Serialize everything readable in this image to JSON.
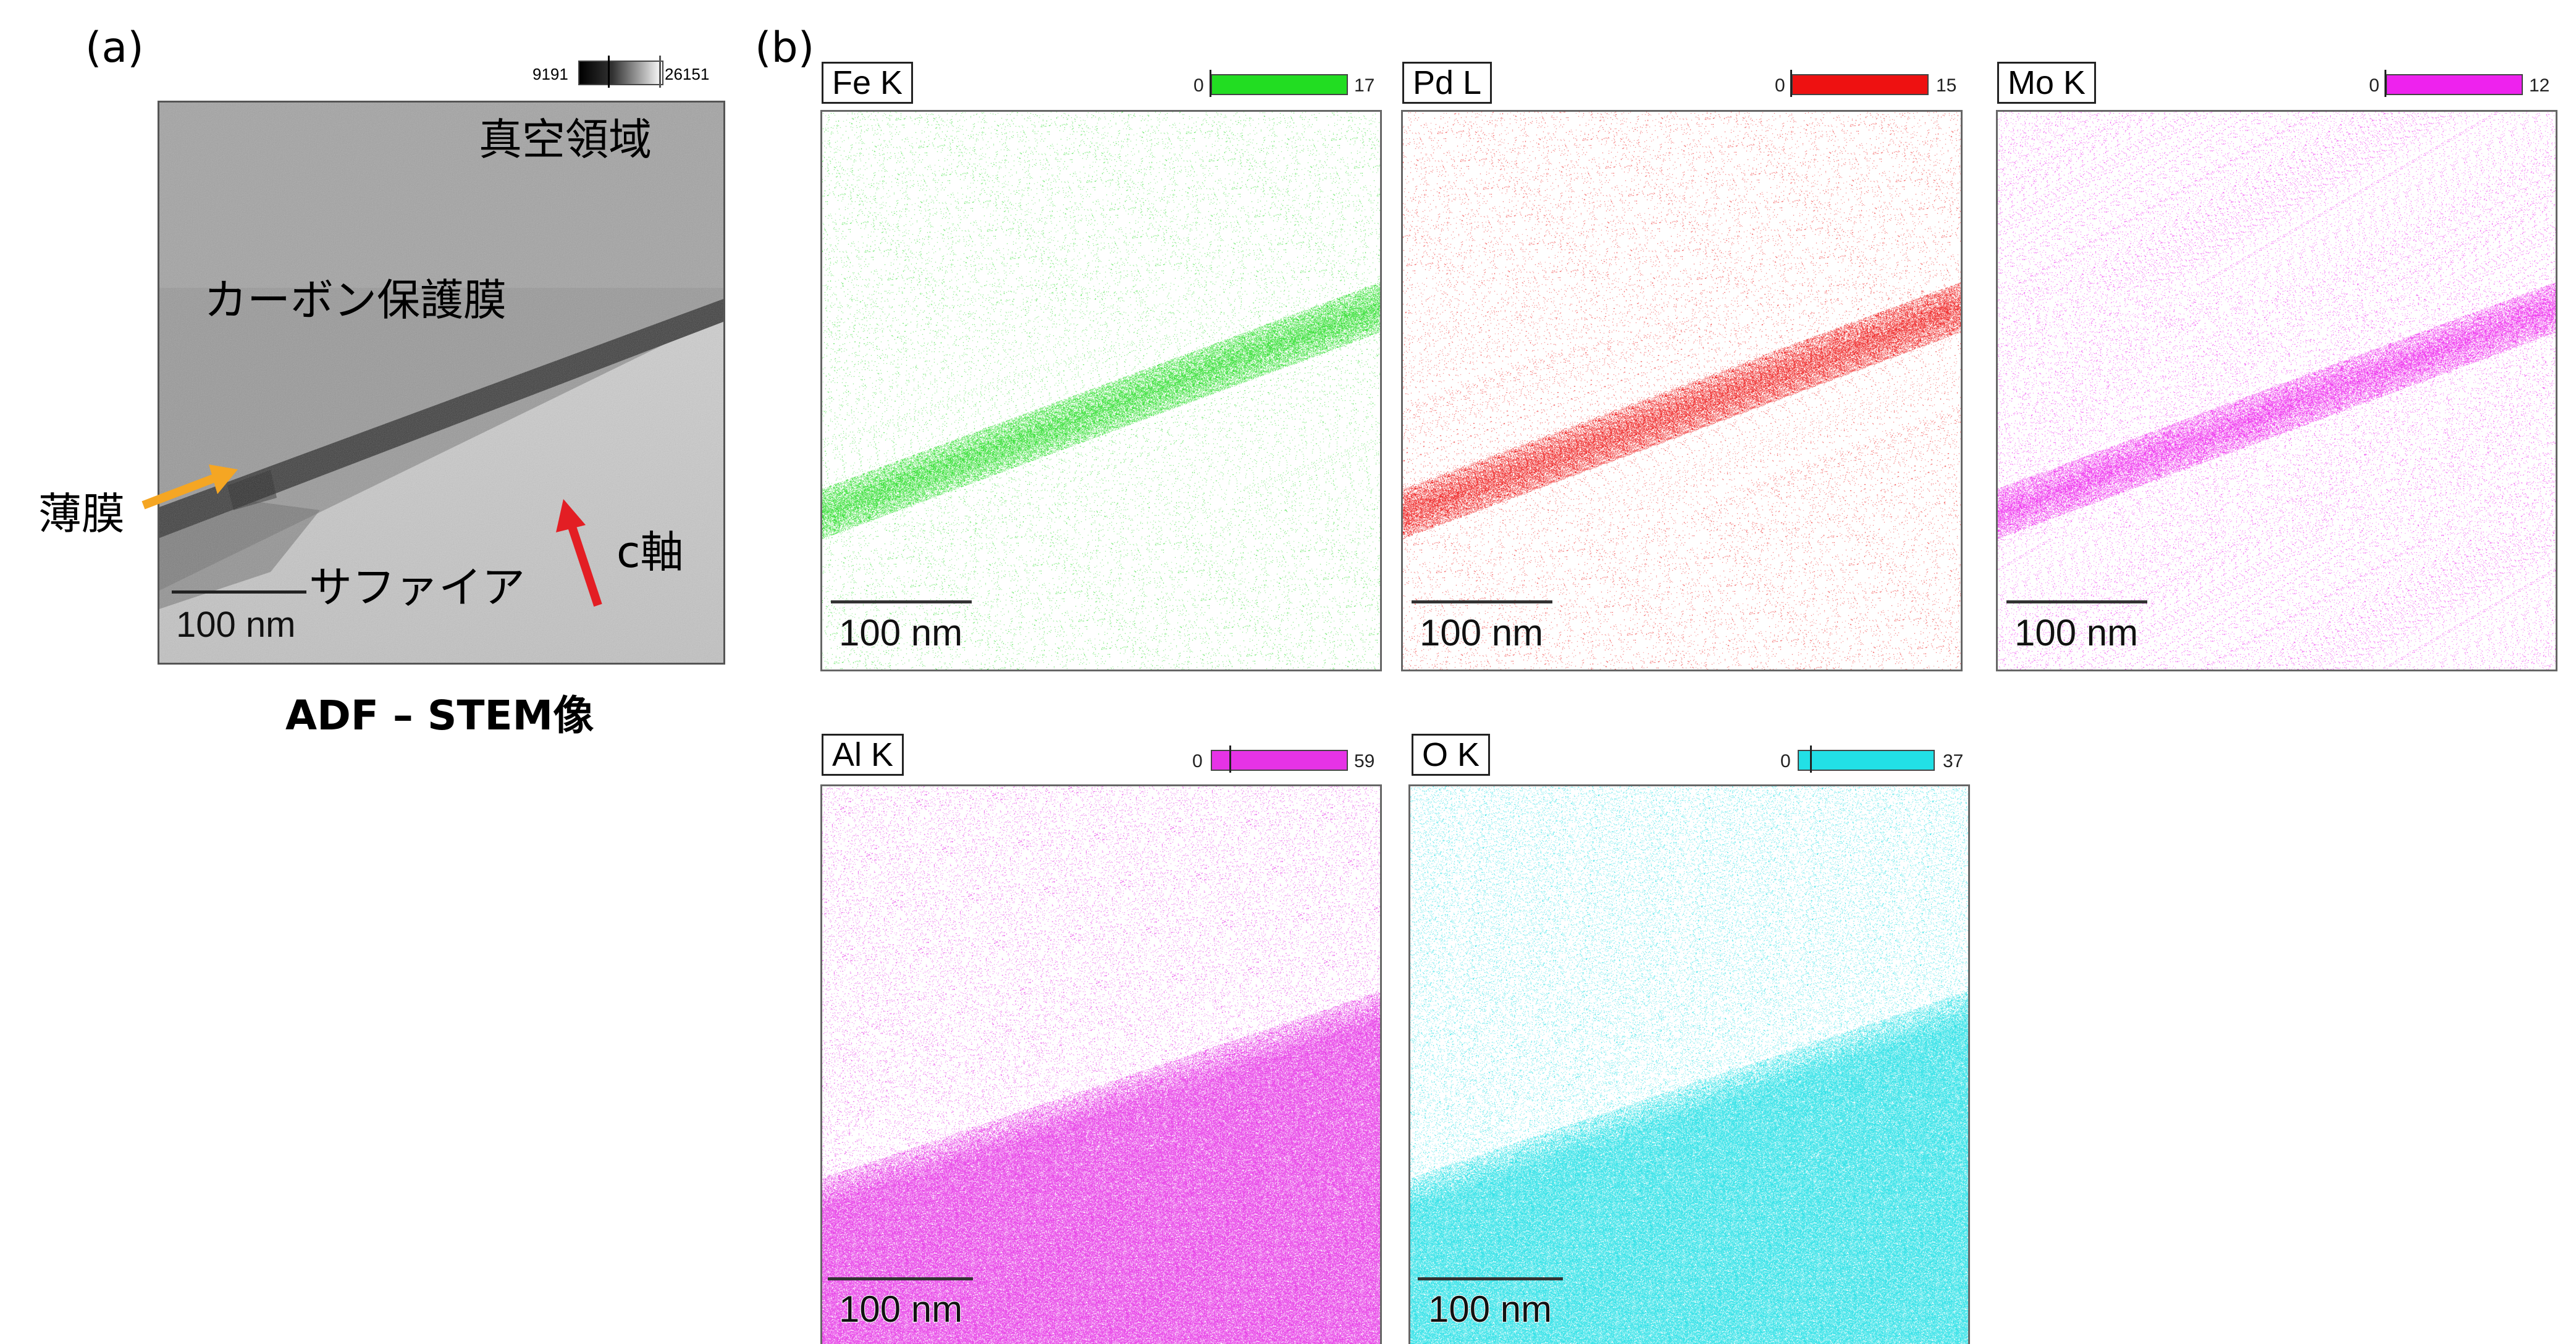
{
  "panel_a": {
    "tag": "(a)",
    "colorbar": {
      "min": "9191",
      "max": "26151"
    },
    "labels": {
      "vacuum": "真空領域",
      "carbon": "カーボン保護膜",
      "film": "薄膜",
      "sapphire": "サファイア",
      "caxis": "c軸"
    },
    "scale": "100 nm",
    "caption": "ADF – STEM像",
    "colors": {
      "film_arrow": "#f5a623",
      "c_axis_arrow": "#e31e24"
    }
  },
  "panel_b": {
    "tag": "(b)",
    "maps": [
      {
        "element": "Fe K",
        "min": "0",
        "max": "17",
        "color": "#22dd22",
        "scale": "100 nm",
        "kind": "film"
      },
      {
        "element": "Pd L",
        "min": "0",
        "max": "15",
        "color": "#ee1111",
        "scale": "100 nm",
        "kind": "film"
      },
      {
        "element": "Mo K",
        "min": "0",
        "max": "12",
        "color": "#ee22ee",
        "scale": "100 nm",
        "kind": "film_noisy"
      },
      {
        "element": "Al K",
        "min": "0",
        "max": "59",
        "color": "#e633e6",
        "scale": "100 nm",
        "kind": "substrate"
      },
      {
        "element": "O K",
        "min": "0",
        "max": "37",
        "color": "#22e0e6",
        "scale": "100 nm",
        "kind": "substrate_o"
      }
    ]
  }
}
